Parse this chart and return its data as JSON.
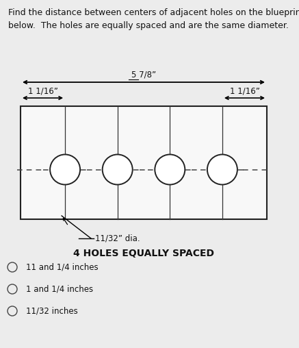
{
  "title_text": "Find the distance between centers of adjacent holes on the blueprint\nbelow.  The holes are equally spaced and are the same diameter.",
  "top_dim_label": "5 7/8”",
  "left_dim_label": "1 1/16”",
  "right_dim_label": "1 1/16”",
  "hole_dia_label": "11/32” dia.",
  "holes_label": "4 HOLES EQUALLY SPACED",
  "choices": [
    "11 and 1/4 inches",
    "1 and 1/4 inches",
    "11/32 inches"
  ],
  "bg_color": "#ececec",
  "box_facecolor": "#f8f8f8",
  "box_edgecolor": "#222222",
  "hole_color": "#222222",
  "dashed_color": "#444444",
  "text_color": "#111111",
  "num_holes": 4,
  "fig_width": 4.37,
  "fig_height": 5.08,
  "title_fontsize": 9.0,
  "dim_fontsize": 8.5,
  "label_fontsize": 8.5,
  "bold_fontsize": 10.0,
  "choice_fontsize": 8.5
}
